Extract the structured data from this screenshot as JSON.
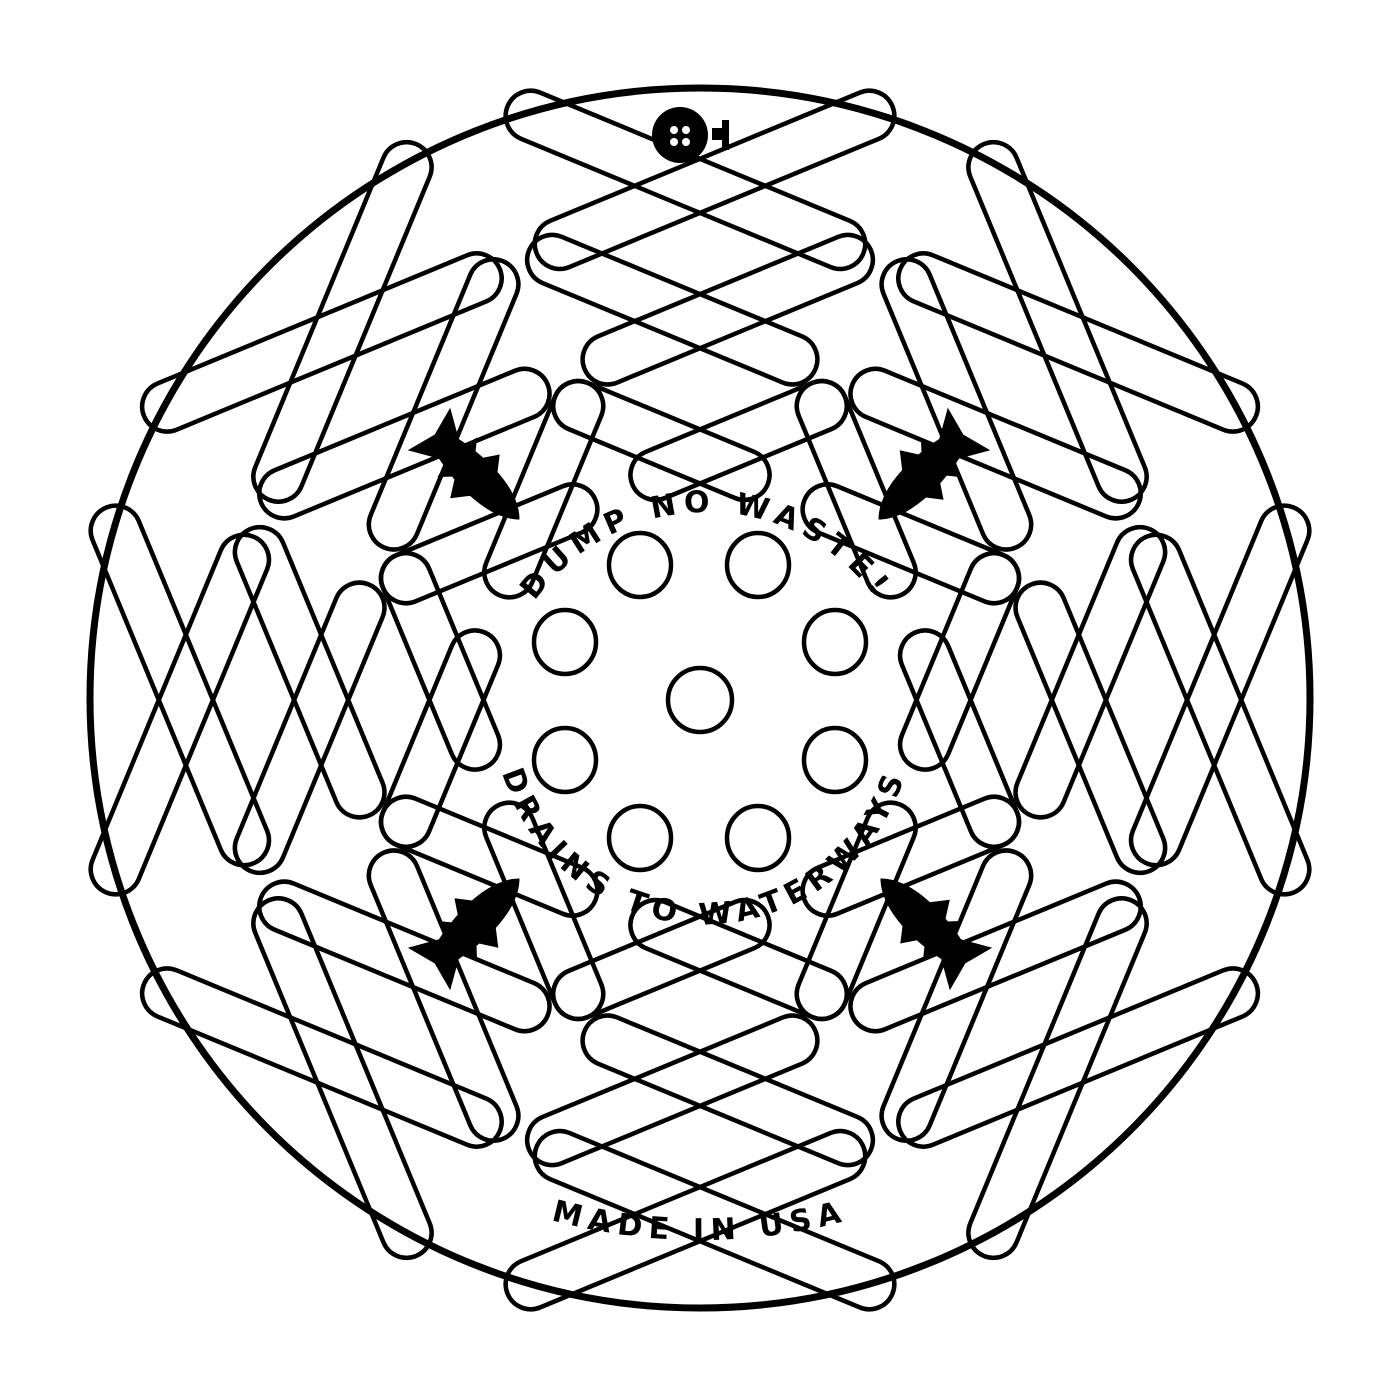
{
  "grate": {
    "arc_top": "DUMP NO WASTE!",
    "arc_bottom": "DRAINS TO WATERWAYS",
    "maker_mark": "MADE IN USA"
  },
  "figures": {
    "fish_count": 4,
    "fish_icon": "fish-icon",
    "logo_icon": "foundry-logo-icon"
  },
  "colors": {
    "line": "#000000",
    "background": "#ffffff"
  }
}
